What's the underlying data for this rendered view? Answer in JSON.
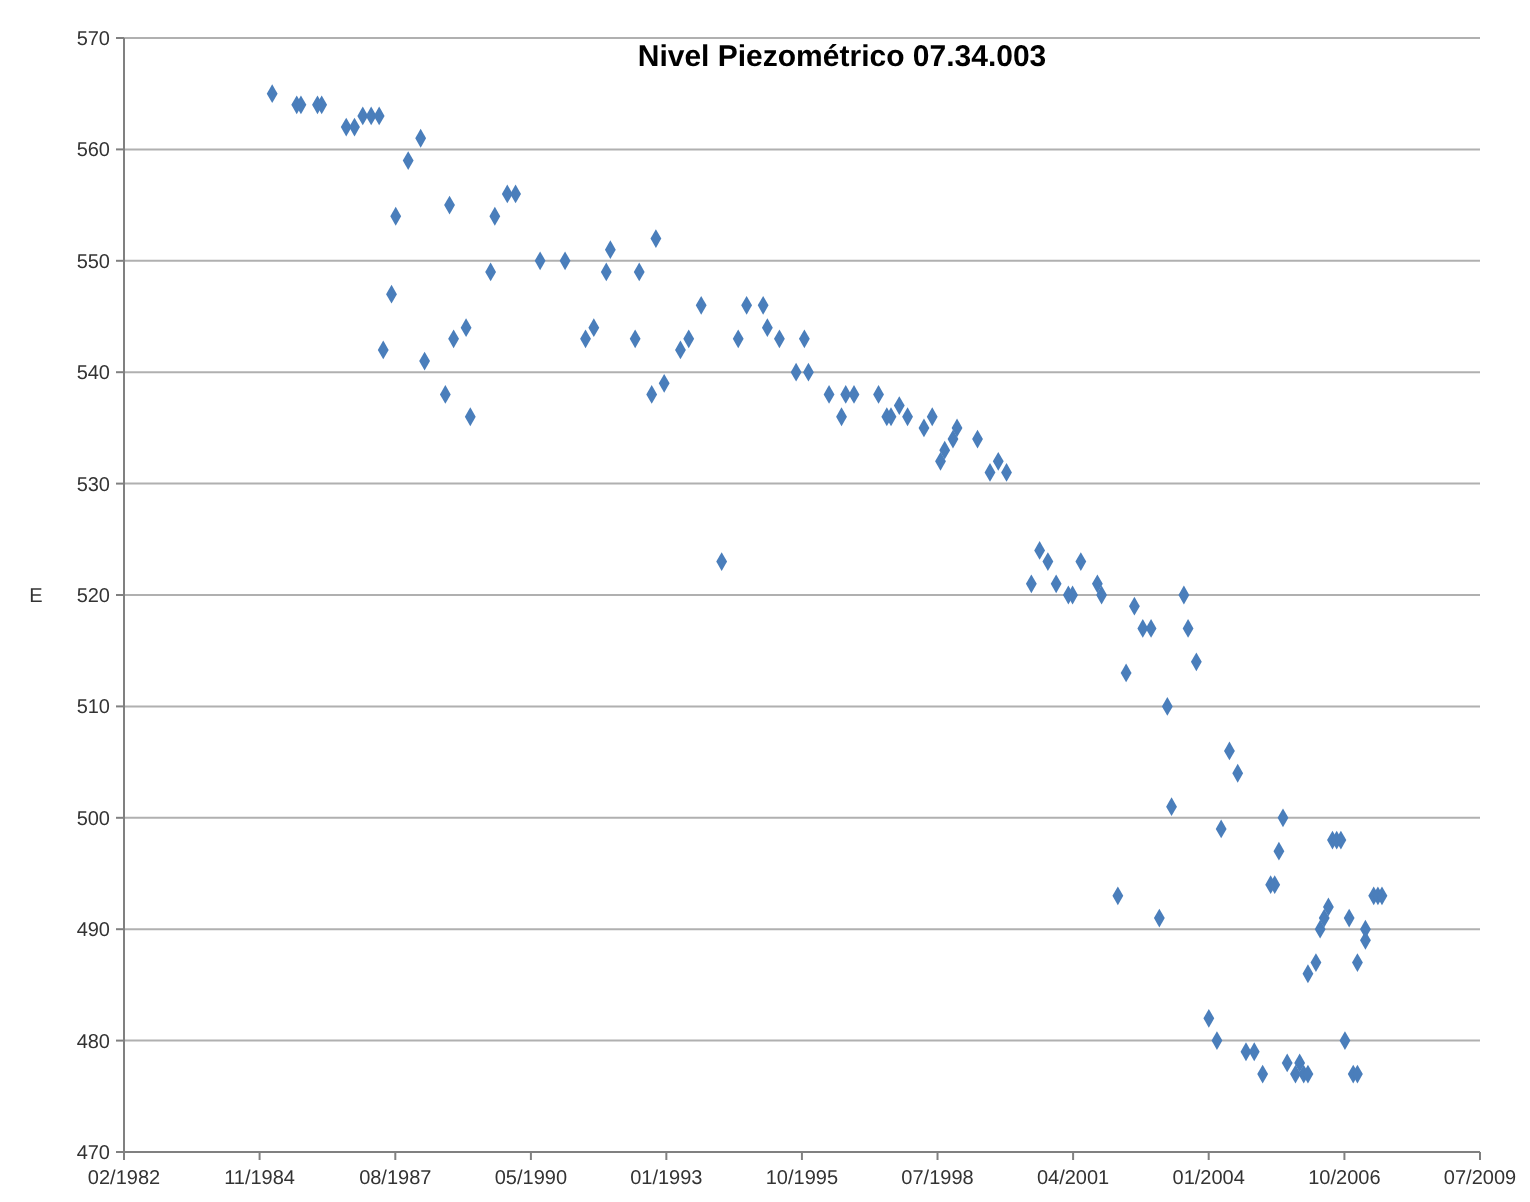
{
  "chart_data": {
    "type": "scatter",
    "title": "Nivel Piezométrico 07.34.003",
    "ylabel": "E",
    "marker": "diamond",
    "grid": "y",
    "xlim": [
      "1982-02-18",
      "2009-07-07"
    ],
    "ylim": [
      470,
      570
    ],
    "yticks": [
      470,
      480,
      490,
      500,
      510,
      520,
      530,
      540,
      550,
      560,
      570
    ],
    "xticks": [
      {
        "value": "1982-02-18",
        "label": "02/1982"
      },
      {
        "value": "1984-11-14",
        "label": "11/1984"
      },
      {
        "value": "1987-08-12",
        "label": "08/1987"
      },
      {
        "value": "1990-05-08",
        "label": "05/1990"
      },
      {
        "value": "1993-01-31",
        "label": "01/1993"
      },
      {
        "value": "1995-10-28",
        "label": "10/1995"
      },
      {
        "value": "1998-07-24",
        "label": "07/1998"
      },
      {
        "value": "2001-04-19",
        "label": "04/2001"
      },
      {
        "value": "2004-01-14",
        "label": "01/2004"
      },
      {
        "value": "2006-10-11",
        "label": "10/2006"
      },
      {
        "value": "2009-07-07",
        "label": "07/2009"
      }
    ],
    "series": [
      {
        "color": "#4a7ebb",
        "x": [
          "1985-02",
          "1985-08",
          "1985-09",
          "1986-01",
          "1986-02",
          "1986-08",
          "1986-10",
          "1986-12",
          "1987-02",
          "1987-04",
          "1987-05",
          "1987-07",
          "1987-08",
          "1987-11",
          "1988-02",
          "1988-03",
          "1988-08",
          "1988-09",
          "1988-10",
          "1989-01",
          "1989-02",
          "1989-07",
          "1989-08",
          "1989-11",
          "1990-01",
          "1990-07",
          "1991-01",
          "1991-06",
          "1991-08",
          "1991-11",
          "1991-12",
          "1992-06",
          "1992-07",
          "1992-10",
          "1992-11",
          "1993-01",
          "1993-05",
          "1993-07",
          "1993-10",
          "1994-03",
          "1994-07",
          "1994-09",
          "1995-01",
          "1995-02",
          "1995-05",
          "1995-09",
          "1995-11",
          "1995-12",
          "1996-05",
          "1996-08",
          "1996-09",
          "1996-11",
          "1997-05",
          "1997-07",
          "1997-08",
          "1997-10",
          "1997-12",
          "1998-04",
          "1998-06",
          "1998-08",
          "1998-09",
          "1998-11",
          "1998-12",
          "1999-05",
          "1999-08",
          "1999-10",
          "1999-12",
          "2000-06",
          "2000-08",
          "2000-10",
          "2000-12",
          "2001-03",
          "2001-04",
          "2001-06",
          "2001-10",
          "2001-11",
          "2002-03",
          "2002-05",
          "2002-07",
          "2002-09",
          "2002-11",
          "2003-01",
          "2003-03",
          "2003-04",
          "2003-07",
          "2003-08",
          "2003-10",
          "2004-01",
          "2004-03",
          "2004-04",
          "2004-06",
          "2004-08",
          "2004-10",
          "2004-12",
          "2005-02",
          "2005-04",
          "2005-05",
          "2005-06",
          "2005-07",
          "2005-08",
          "2005-10",
          "2005-11",
          "2005-12",
          "2006-01",
          "2006-01",
          "2006-03",
          "2006-04",
          "2006-05",
          "2006-06",
          "2006-07",
          "2006-08",
          "2006-09",
          "2006-10",
          "2006-11",
          "2006-12",
          "2007-01",
          "2007-01",
          "2007-03",
          "2007-03",
          "2007-05",
          "2007-06",
          "2007-07"
        ],
        "values": [
          565,
          564,
          564,
          564,
          564,
          562,
          562,
          563,
          563,
          563,
          542,
          547,
          554,
          559,
          561,
          541,
          538,
          555,
          543,
          544,
          536,
          549,
          554,
          556,
          556,
          550,
          550,
          543,
          544,
          549,
          551,
          543,
          549,
          538,
          552,
          539,
          542,
          543,
          546,
          523,
          543,
          546,
          546,
          544,
          543,
          540,
          543,
          540,
          538,
          536,
          538,
          538,
          538,
          536,
          536,
          537,
          536,
          535,
          536,
          532,
          533,
          534,
          535,
          534,
          531,
          532,
          531,
          521,
          524,
          523,
          521,
          520,
          520,
          523,
          521,
          520,
          493,
          513,
          519,
          517,
          517,
          491,
          510,
          501,
          520,
          517,
          514,
          482,
          480,
          499,
          506,
          504,
          479,
          479,
          477,
          494,
          494,
          497,
          500,
          478,
          477,
          478,
          477,
          486,
          477,
          487,
          490,
          491,
          492,
          498,
          498,
          498,
          480,
          491,
          477,
          487,
          477,
          490,
          489,
          493,
          493,
          493
        ]
      }
    ]
  }
}
